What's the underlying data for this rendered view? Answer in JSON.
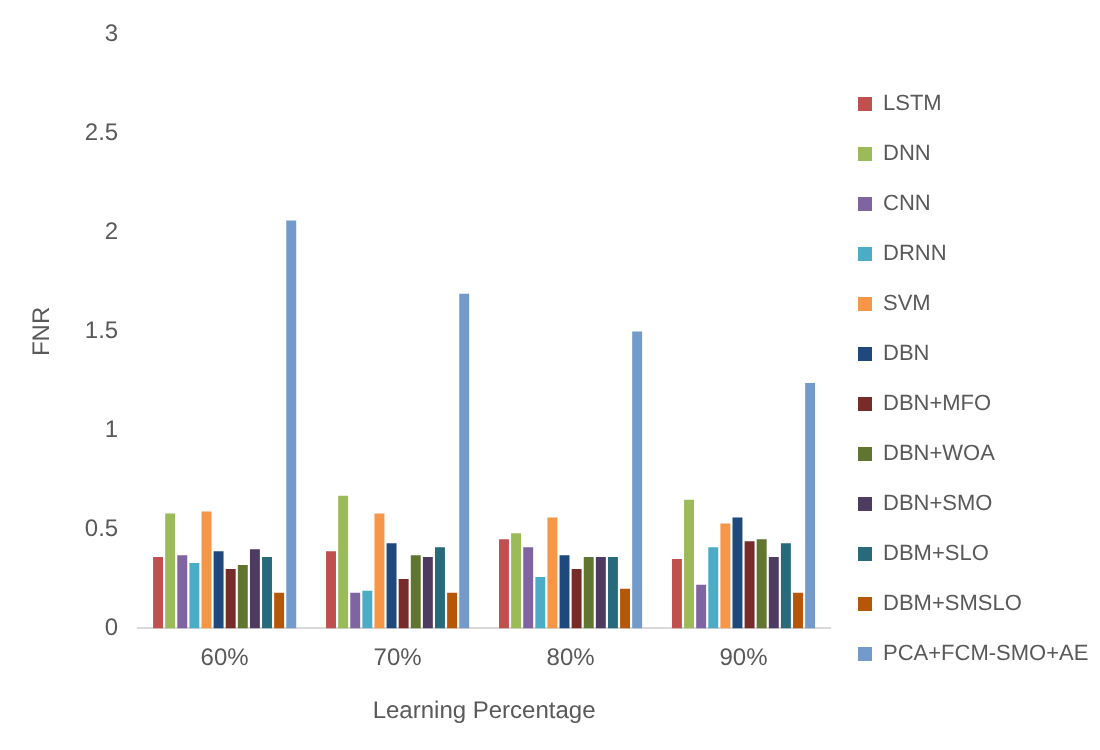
{
  "chart_data": {
    "type": "bar",
    "xlabel": "Learning Percentage",
    "ylabel": "FNR",
    "categories": [
      "60%",
      "70%",
      "80%",
      "90%"
    ],
    "ylim": [
      0,
      3
    ],
    "yticks": [
      0,
      0.5,
      1,
      1.5,
      2,
      2.5,
      3
    ],
    "grid": false,
    "legend": "right",
    "series": [
      {
        "name": "LSTM",
        "color": "#c0504d",
        "values": [
          0.36,
          0.39,
          0.45,
          0.35
        ]
      },
      {
        "name": "DNN",
        "color": "#9bbb59",
        "values": [
          0.58,
          0.67,
          0.48,
          0.65
        ]
      },
      {
        "name": "CNN",
        "color": "#8064a2",
        "values": [
          0.37,
          0.18,
          0.41,
          0.22
        ]
      },
      {
        "name": "DRNN",
        "color": "#4bacc6",
        "values": [
          0.33,
          0.19,
          0.26,
          0.41
        ]
      },
      {
        "name": "SVM",
        "color": "#f79646",
        "values": [
          0.59,
          0.58,
          0.56,
          0.53
        ]
      },
      {
        "name": "DBN",
        "color": "#1f497d",
        "values": [
          0.39,
          0.43,
          0.37,
          0.56
        ]
      },
      {
        "name": "DBN+MFO",
        "color": "#772c2a",
        "values": [
          0.3,
          0.25,
          0.3,
          0.44
        ]
      },
      {
        "name": "DBN+WOA",
        "color": "#5f7530",
        "values": [
          0.32,
          0.37,
          0.36,
          0.45
        ]
      },
      {
        "name": "DBN+SMO",
        "color": "#4d3b62",
        "values": [
          0.4,
          0.36,
          0.36,
          0.36
        ]
      },
      {
        "name": "DBM+SLO",
        "color": "#276a7c",
        "values": [
          0.36,
          0.41,
          0.36,
          0.43
        ]
      },
      {
        "name": "DBM+SMSLO",
        "color": "#b65708",
        "values": [
          0.18,
          0.18,
          0.2,
          0.18
        ]
      },
      {
        "name": "PCA+FCM-SMO+AE",
        "color": "#729aca",
        "values": [
          2.06,
          1.69,
          1.5,
          1.24
        ]
      }
    ]
  }
}
